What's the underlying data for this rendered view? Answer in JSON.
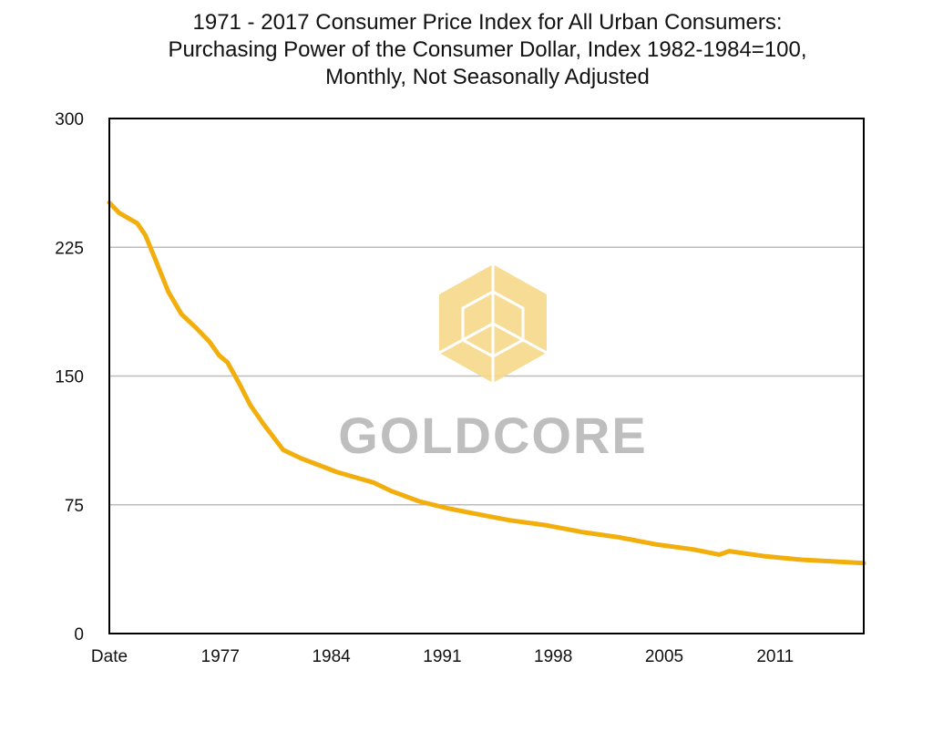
{
  "chart_data": {
    "type": "line",
    "title": "1971 - 2017 Consumer Price Index for All Urban Consumers: Purchasing Power of the Consumer Dollar, Index 1982-1984=100, Monthly, Not Seasonally Adjusted",
    "title_lines": [
      "1971 - 2017 Consumer Price Index for All Urban Consumers:",
      "Purchasing Power of the Consumer Dollar, Index 1982-1984=100,",
      "Monthly, Not Seasonally Adjusted"
    ],
    "xlabel": "",
    "ylabel": "",
    "xlim": [
      1971,
      2017
    ],
    "ylim": [
      0,
      300
    ],
    "x_tick_labels": [
      "Date",
      "1977",
      "1984",
      "1991",
      "1998",
      "2005",
      "2011"
    ],
    "y_ticks": [
      0,
      75,
      150,
      225,
      300
    ],
    "grid": "horizontal",
    "line_color": "#F2AE0C",
    "watermark": "GOLDCORE",
    "watermark_color": "#F7D98A",
    "series": [
      {
        "x": [
          1971.0,
          1971.6,
          1972.7,
          1973.2,
          1973.8,
          1974.6,
          1975.4,
          1976.3,
          1977.1,
          1977.7,
          1978.2,
          1978.9,
          1979.6,
          1980.4,
          1981.6,
          1982.7,
          1983.8,
          1984.9,
          1986.0,
          1987.1,
          1988.2,
          1989.9,
          1991.6,
          1993.2,
          1995.4,
          1997.7,
          1999.9,
          2002.1,
          2004.3,
          2006.6,
          2008.2,
          2008.8,
          2011.0,
          2013.2,
          2017.0
        ],
        "y": [
          251,
          245,
          239,
          232,
          218,
          199,
          186,
          178,
          170,
          162,
          158,
          146,
          133,
          122,
          107,
          102,
          98,
          94,
          91,
          88,
          83,
          77,
          73,
          70,
          66,
          63,
          59,
          56,
          52,
          49,
          46,
          48,
          45,
          43,
          41
        ]
      }
    ]
  }
}
